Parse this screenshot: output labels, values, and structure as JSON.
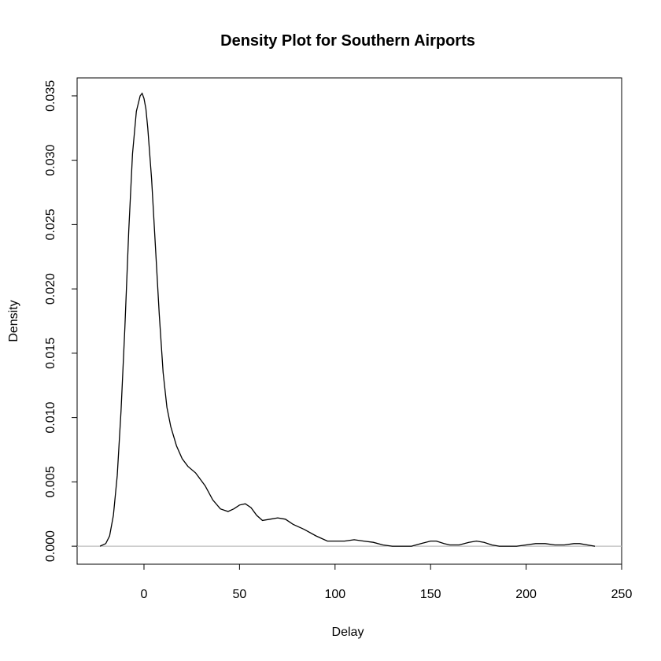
{
  "chart_data": {
    "type": "line",
    "title": "Density Plot for Southern Airports",
    "xlabel": "Delay",
    "ylabel": "Density",
    "xlim": [
      -35,
      250
    ],
    "ylim": [
      -0.0014,
      0.0364
    ],
    "xticks": [
      0,
      50,
      100,
      150,
      200,
      250
    ],
    "xtick_labels": [
      "0",
      "50",
      "100",
      "150",
      "200",
      "250"
    ],
    "yticks": [
      0.0,
      0.005,
      0.01,
      0.015,
      0.02,
      0.025,
      0.03,
      0.035
    ],
    "ytick_labels": [
      "0.000",
      "0.005",
      "0.010",
      "0.015",
      "0.020",
      "0.025",
      "0.030",
      "0.035"
    ],
    "grid": false,
    "baseline": 0,
    "series": [
      {
        "x": [
          -23,
          -20,
          -18,
          -16,
          -14,
          -12,
          -10,
          -8,
          -6,
          -4,
          -2,
          -1,
          0,
          1,
          2,
          4,
          6,
          8,
          10,
          12,
          14,
          17,
          20,
          23,
          27,
          32,
          36,
          40,
          44,
          47,
          50,
          53,
          56,
          59,
          62,
          66,
          70,
          74,
          78,
          84,
          90,
          96,
          100,
          105,
          110,
          115,
          120,
          125,
          130,
          135,
          140,
          145,
          150,
          153,
          157,
          160,
          165,
          170,
          174,
          178,
          182,
          186,
          190,
          195,
          200,
          205,
          210,
          215,
          220,
          225,
          228,
          232,
          236
        ],
        "y": [
          0.0,
          0.0002,
          0.0008,
          0.0024,
          0.0055,
          0.0105,
          0.017,
          0.0245,
          0.0305,
          0.0338,
          0.035,
          0.0352,
          0.0348,
          0.034,
          0.0325,
          0.0285,
          0.0232,
          0.018,
          0.0135,
          0.0108,
          0.0093,
          0.0078,
          0.0068,
          0.0062,
          0.0057,
          0.0047,
          0.0036,
          0.0029,
          0.0027,
          0.0029,
          0.0032,
          0.0033,
          0.003,
          0.0024,
          0.002,
          0.0021,
          0.0022,
          0.0021,
          0.0017,
          0.0013,
          0.0008,
          0.0004,
          0.0004,
          0.0004,
          0.0005,
          0.0004,
          0.0003,
          0.0001,
          0.0,
          0.0,
          0.0,
          0.0002,
          0.0004,
          0.0004,
          0.0002,
          0.0001,
          0.0001,
          0.0003,
          0.0004,
          0.0003,
          0.0001,
          0.0,
          0.0,
          0.0,
          0.0001,
          0.0002,
          0.0002,
          0.0001,
          0.0001,
          0.0002,
          0.0002,
          0.0001,
          0.0
        ]
      }
    ]
  }
}
